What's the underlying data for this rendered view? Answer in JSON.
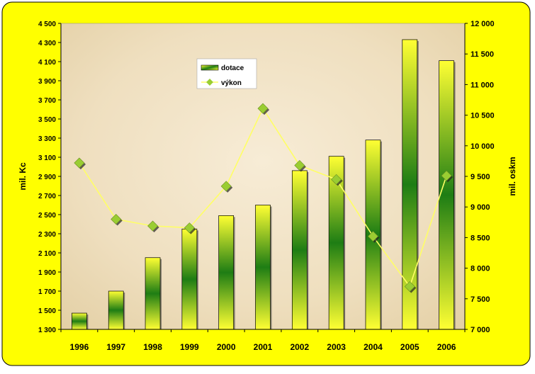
{
  "chart_data": {
    "type": "bar",
    "categories": [
      "1996",
      "1997",
      "1998",
      "1999",
      "2000",
      "2001",
      "2002",
      "2003",
      "2004",
      "2005",
      "2006"
    ],
    "series": [
      {
        "name": "dotace",
        "type": "bar",
        "axis": "left",
        "values": [
          1470,
          1700,
          2050,
          2350,
          2490,
          2600,
          2960,
          3110,
          3280,
          4330,
          4110
        ]
      },
      {
        "name": "výkon",
        "type": "line",
        "axis": "right",
        "values": [
          9720,
          8800,
          8690,
          8660,
          9340,
          10610,
          9680,
          9450,
          8520,
          7700,
          9510
        ]
      }
    ],
    "ylabel": "mil. Kc",
    "y2label": "mil. oskm",
    "ylim": [
      1300,
      4500
    ],
    "y2lim": [
      7000,
      12000
    ],
    "yticks": [
      1300,
      1500,
      1700,
      1900,
      2100,
      2300,
      2500,
      2700,
      2900,
      3100,
      3300,
      3500,
      3700,
      3900,
      4100,
      4300,
      4500
    ],
    "ytick_labels": [
      "1 300",
      "1 500",
      "1 700",
      "1 900",
      "2 100",
      "2 300",
      "2 500",
      "2 700",
      "2 900",
      "3 100",
      "3 300",
      "3 500",
      "3 700",
      "3 900",
      "4 100",
      "4 300",
      "4 500"
    ],
    "y2ticks": [
      7000,
      7500,
      8000,
      8500,
      9000,
      9500,
      10000,
      10500,
      11000,
      11500,
      12000
    ],
    "y2tick_labels": [
      "7 000",
      "7 500",
      "8 000",
      "8 500",
      "9 000",
      "9 500",
      "10 000",
      "10 500",
      "11 000",
      "11 500",
      "12 000"
    ],
    "legend": "top-left inside plot",
    "grid": false,
    "colors": {
      "frame": "#ffff00",
      "bar_edge": "#ffff33",
      "bar_center": "#1e7d14",
      "line": "#ffff66",
      "marker": "#9acd32"
    }
  }
}
